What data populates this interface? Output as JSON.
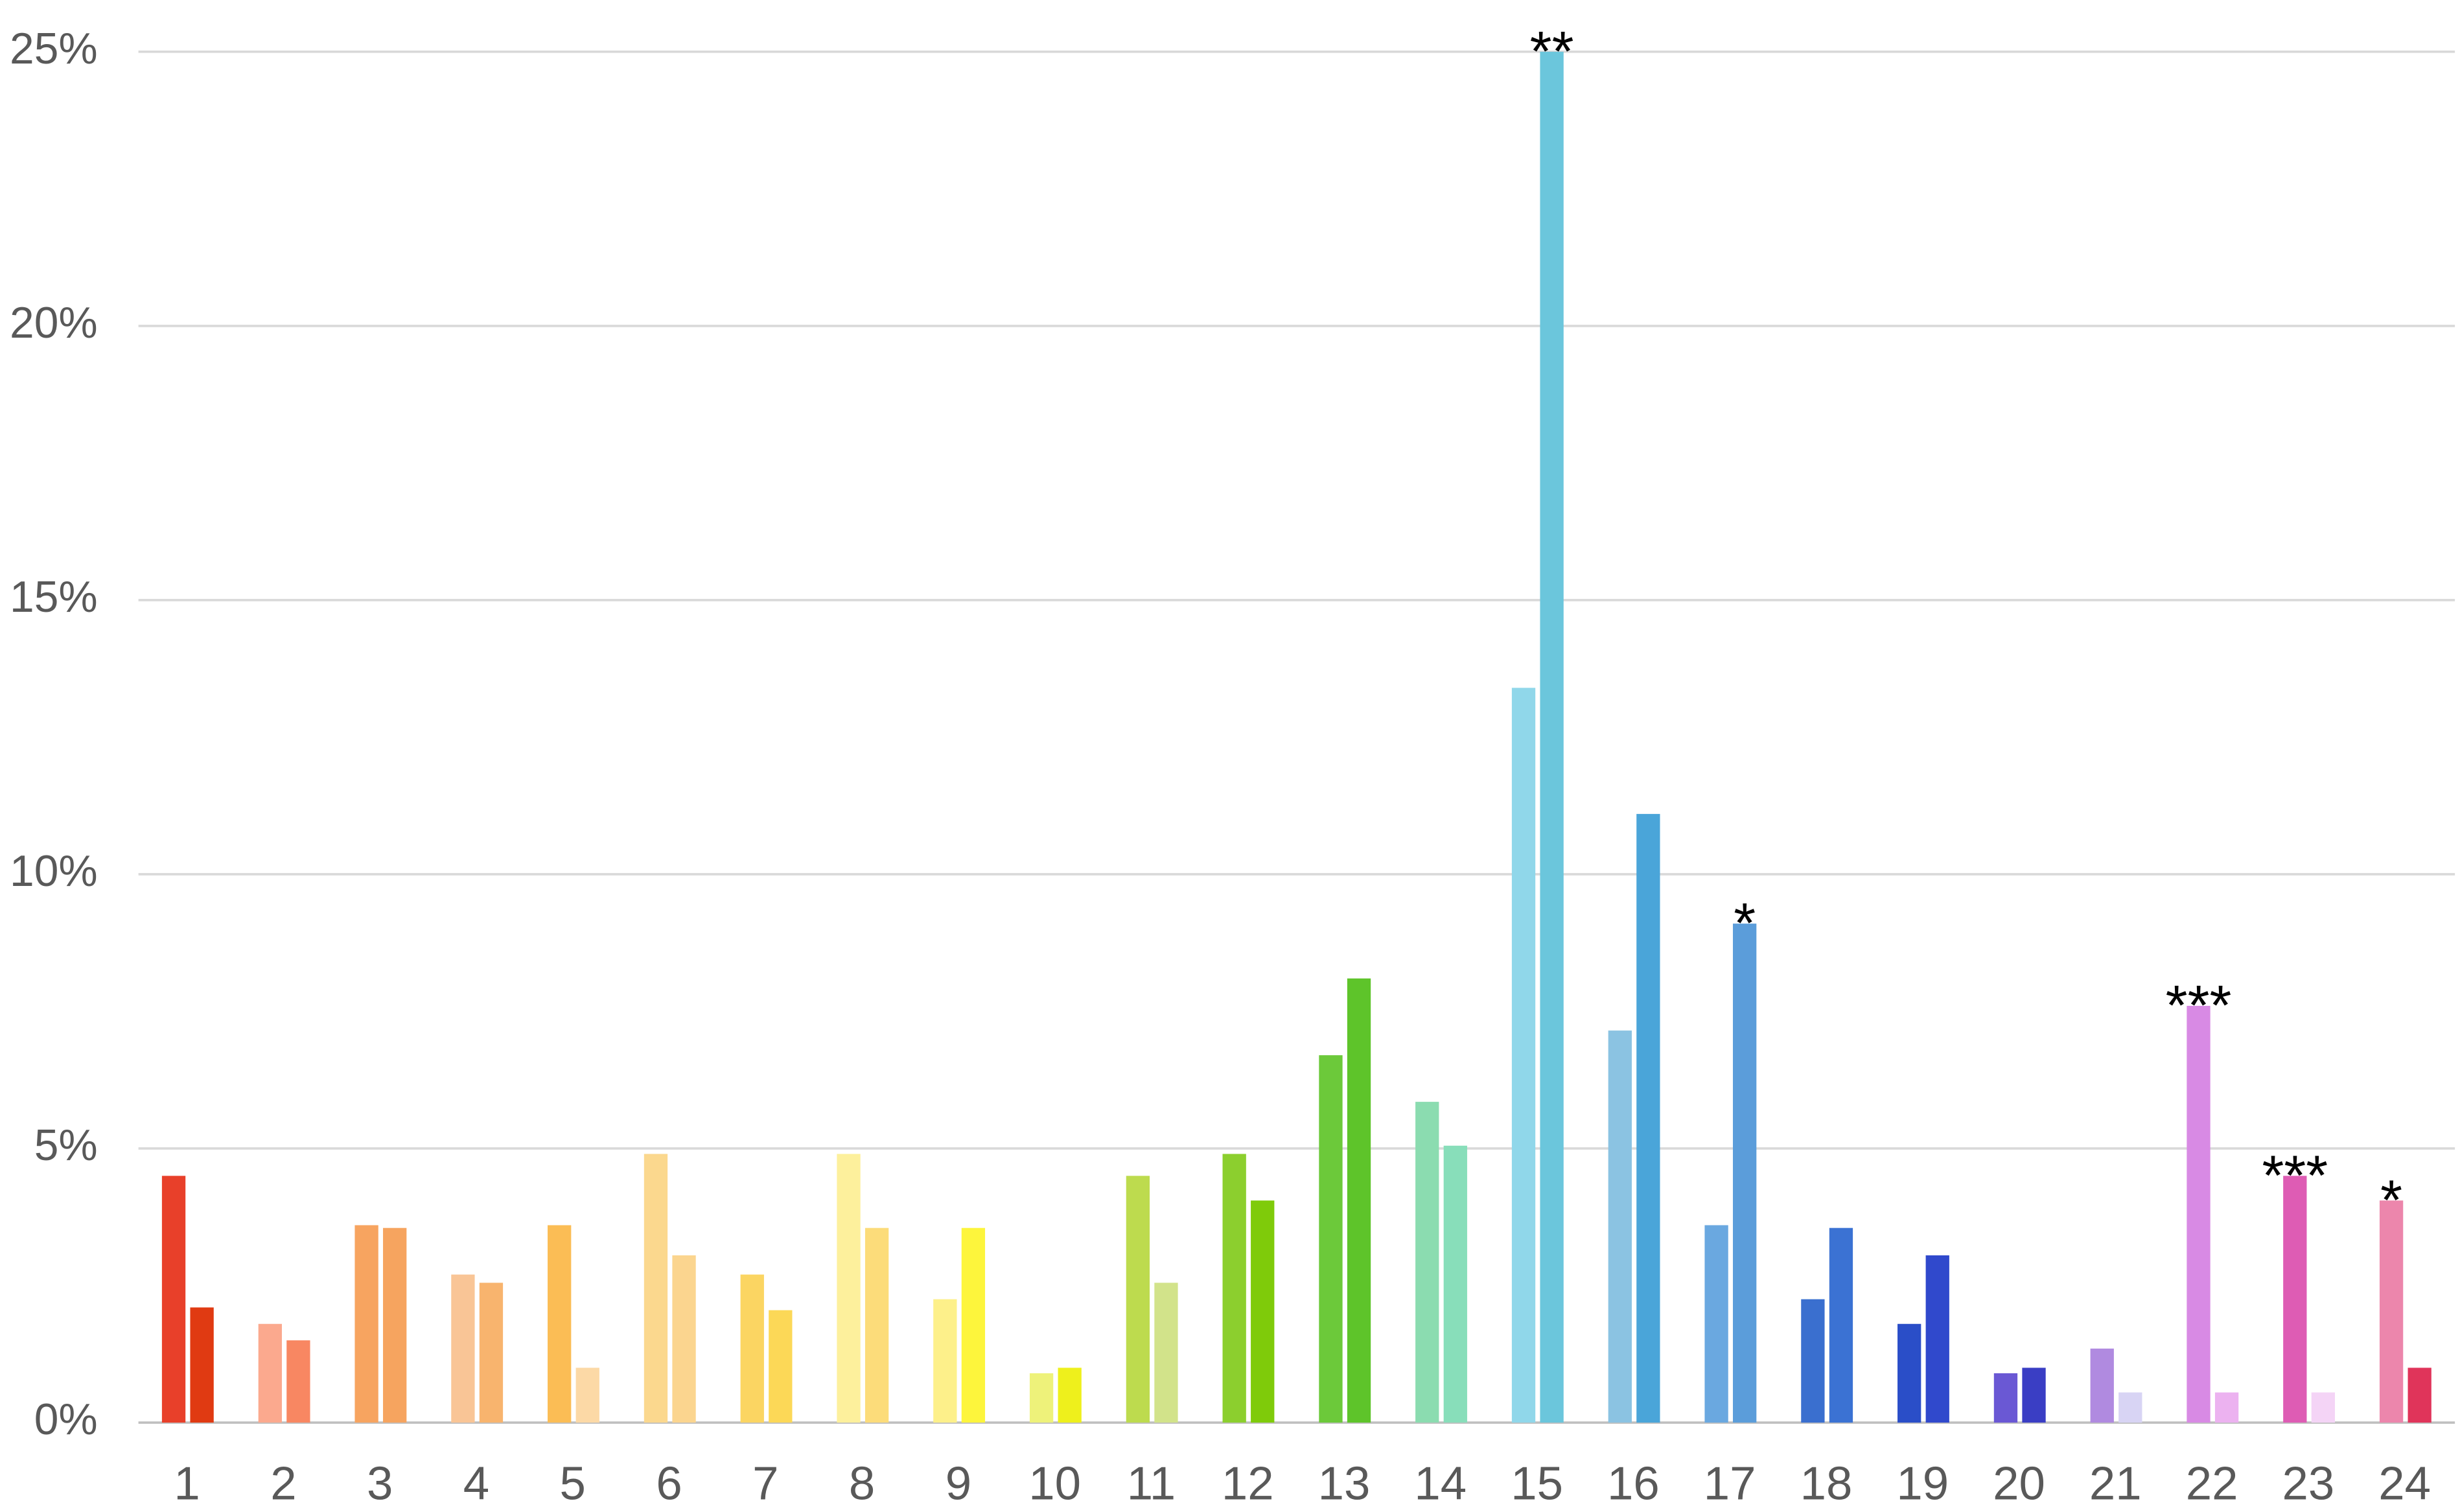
{
  "chart_data": {
    "type": "bar",
    "categories": [
      "1",
      "2",
      "3",
      "4",
      "5",
      "6",
      "7",
      "8",
      "9",
      "10",
      "11",
      "12",
      "13",
      "14",
      "15",
      "16",
      "17",
      "18",
      "19",
      "20",
      "21",
      "22",
      "23",
      "24"
    ],
    "series": [
      {
        "values": [
          4.5,
          1.8,
          3.6,
          2.7,
          3.6,
          4.9,
          2.7,
          4.9,
          2.25,
          0.9,
          4.5,
          4.9,
          6.7,
          5.85,
          13.4,
          7.15,
          3.6,
          2.25,
          1.8,
          0.9,
          1.35,
          7.6,
          4.5,
          4.05
        ],
        "colors": [
          "#e8402a",
          "#fba98e",
          "#f7a460",
          "#f9c596",
          "#fbbd55",
          "#fbd88e",
          "#fbd562",
          "#fdf09c",
          "#fdf08a",
          "#eef27a",
          "#bddb4e",
          "#8ccf2e",
          "#6cc93a",
          "#8bdcb0",
          "#90d7ea",
          "#8bc3e2",
          "#6aa8e0",
          "#3a6fcf",
          "#2a4ec8",
          "#6a58d4",
          "#b08ae0",
          "#d88ae4",
          "#de5cb4",
          "#ec86ac"
        ],
        "annotations": [
          null,
          null,
          null,
          null,
          null,
          null,
          null,
          null,
          null,
          null,
          null,
          null,
          null,
          null,
          null,
          null,
          null,
          null,
          null,
          null,
          null,
          "***",
          "***",
          "*"
        ]
      },
      {
        "values": [
          2.1,
          1.5,
          3.55,
          2.55,
          1.0,
          3.05,
          2.05,
          3.55,
          3.55,
          1.0,
          2.55,
          4.05,
          8.1,
          5.05,
          25,
          11.1,
          9.1,
          3.55,
          3.05,
          1.0,
          0.55,
          0.55,
          0.55,
          1.0
        ],
        "colors": [
          "#e03a12",
          "#f88762",
          "#f6a45f",
          "#f8b46e",
          "#fcd9a6",
          "#fbd58f",
          "#fcd857",
          "#fcdc7a",
          "#fdf53c",
          "#eef01c",
          "#d2e38a",
          "#7fcb0a",
          "#5ec42a",
          "#88deba",
          "#6bc6dc",
          "#4aa5d9",
          "#5b9dda",
          "#3b72d3",
          "#3049cc",
          "#3a3ec4",
          "#d8d4f4",
          "#ecb2f0",
          "#f4d4f6",
          "#e0345a"
        ],
        "annotations": [
          null,
          null,
          null,
          null,
          null,
          null,
          null,
          null,
          null,
          null,
          null,
          null,
          null,
          null,
          "**",
          null,
          "*",
          null,
          null,
          null,
          null,
          null,
          null,
          null
        ]
      }
    ],
    "ylim": [
      0,
      25
    ],
    "yticks": [
      {
        "value": 0,
        "label": "0%"
      },
      {
        "value": 5,
        "label": "5%"
      },
      {
        "value": 10,
        "label": "10%"
      },
      {
        "value": 15,
        "label": "15%"
      },
      {
        "value": 20,
        "label": "20%"
      },
      {
        "value": 25,
        "label": "25%"
      }
    ],
    "grid": true
  }
}
